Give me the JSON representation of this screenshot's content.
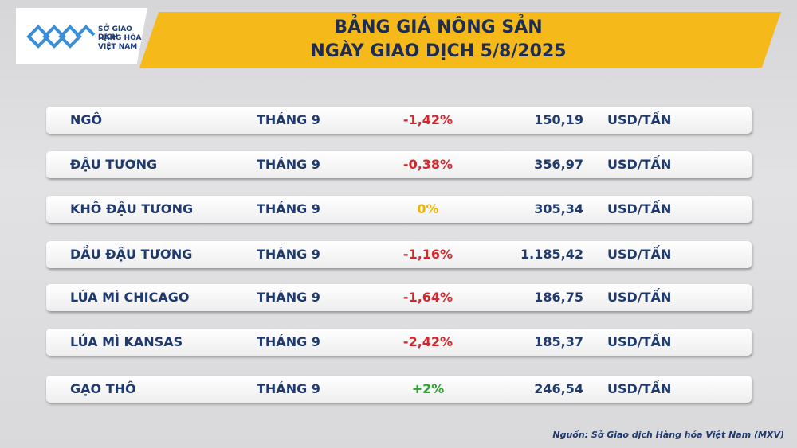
{
  "header": {
    "logo": [
      "SỞ GIAO DỊCH",
      "HÀNG HÓA",
      "VIỆT NAM"
    ],
    "title": [
      "BẢNG GIÁ NÔNG SẢN",
      "NGÀY GIAO DỊCH 5/8/2025"
    ]
  },
  "table": {
    "rows": [
      [
        "NGÔ",
        "THÁNG 9",
        "-1,42%",
        "150,19",
        "USD/TẤN"
      ],
      [
        "ĐẬU TƯƠNG",
        "THÁNG 9",
        "-0,38%",
        "356,97",
        "USD/TẤN"
      ],
      [
        "KHÔ ĐẬU TƯƠNG",
        "THÁNG 9",
        "0%",
        "305,34",
        "USD/TẤN"
      ],
      [
        "DẦU ĐẬU TƯƠNG",
        "THÁNG 9",
        "-1,16%",
        "1.185,42",
        "USD/TẤN"
      ],
      [
        "LÚA MÌ CHICAGO",
        "THÁNG 9",
        "-1,64%",
        "186,75",
        "USD/TẤN"
      ],
      [
        "LÚA MÌ KANSAS",
        "THÁNG 9",
        "-2,42%",
        "185,37",
        "USD/TẤN"
      ],
      [
        "GẠO THÔ",
        "THÁNG 9",
        "+2%",
        "246,54",
        "USD/TẤN"
      ]
    ]
  },
  "source": "Nguồn: Sở Giao dịch Hàng hóa Việt Nam (MXV)"
}
